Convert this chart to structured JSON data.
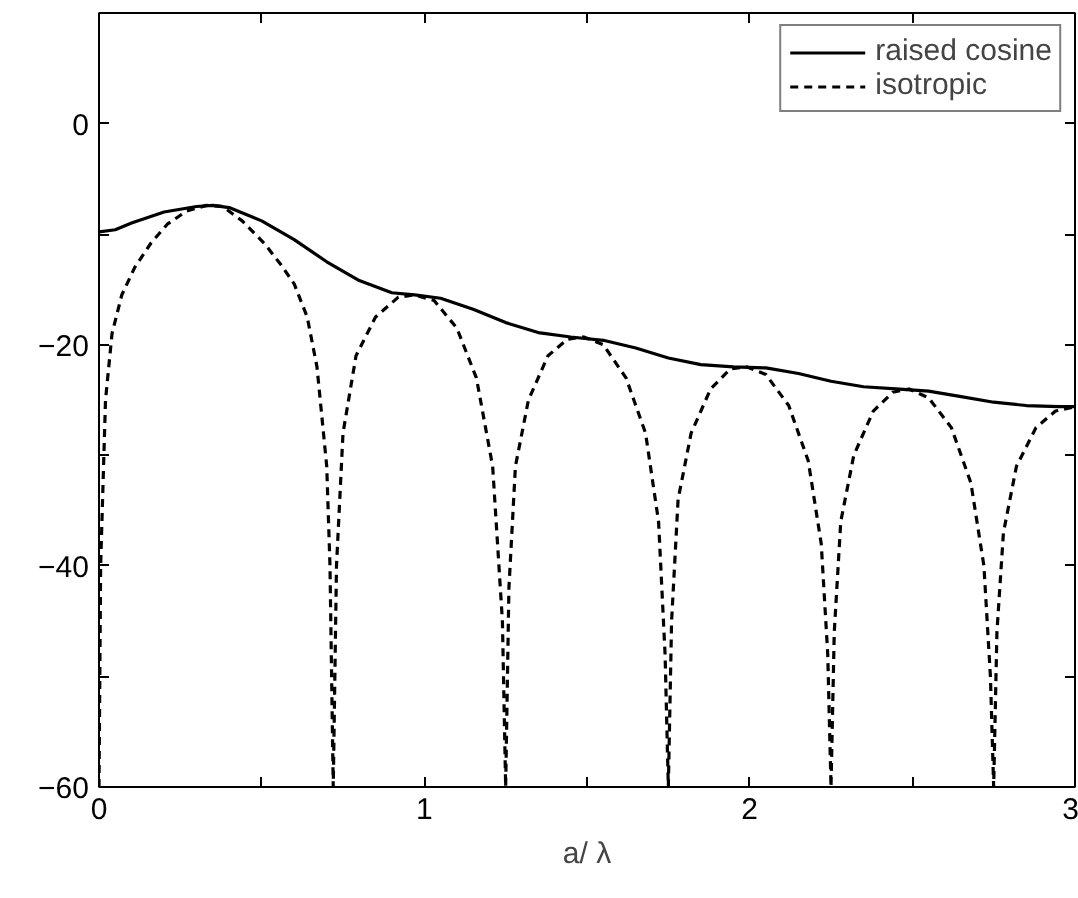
{
  "chart_data": {
    "type": "line",
    "xlabel": "a/ λ",
    "xlim": [
      0,
      3
    ],
    "ylim": [
      -60,
      10
    ],
    "xticks": [
      0,
      {
        "value": 0.5,
        "label": null
      },
      1,
      {
        "value": 1.5,
        "label": null
      },
      2,
      {
        "value": 2.5,
        "label": null
      },
      3
    ],
    "yticks": [
      -60,
      {
        "value": -50,
        "label": null
      },
      -40,
      {
        "value": -30,
        "label": null
      },
      -20,
      {
        "value": -10,
        "label": null
      },
      0,
      {
        "value": 10,
        "label": null
      }
    ],
    "grid": false,
    "legend": "top right",
    "marker": "none",
    "series": [
      {
        "name": "raised cosine",
        "color": "#000000",
        "line_style": "solid",
        "x": [
          0,
          0.05,
          0.1,
          0.2,
          0.3,
          0.35,
          0.4,
          0.5,
          0.6,
          0.7,
          0.8,
          0.9,
          0.97,
          1.05,
          1.15,
          1.25,
          1.35,
          1.45,
          1.55,
          1.65,
          1.75,
          1.85,
          1.95,
          2.05,
          2.15,
          2.25,
          2.35,
          2.45,
          2.55,
          2.65,
          2.75,
          2.85,
          2.95,
          3.0
        ],
        "values": [
          -9.8,
          -9.6,
          -9,
          -8,
          -7.5,
          -7.4,
          -7.6,
          -8.8,
          -10.5,
          -12.5,
          -14.2,
          -15.3,
          -15.5,
          -15.8,
          -16.8,
          -18.0,
          -18.9,
          -19.3,
          -19.6,
          -20.3,
          -21.2,
          -21.8,
          -22,
          -22.1,
          -22.6,
          -23.3,
          -23.8,
          -24,
          -24.2,
          -24.7,
          -25.2,
          -25.5,
          -25.6,
          -25.6
        ]
      },
      {
        "name": "isotropic",
        "color": "#000000",
        "line_style": "dashed",
        "x": [
          0,
          0.005,
          0.02,
          0.04,
          0.07,
          0.11,
          0.16,
          0.21,
          0.27,
          0.33,
          0.38,
          0.44,
          0.51,
          0.56,
          0.6,
          0.64,
          0.67,
          0.7,
          0.71,
          0.72,
          0.73,
          0.75,
          0.79,
          0.85,
          0.92,
          0.97,
          1.03,
          1.1,
          1.16,
          1.21,
          1.24,
          1.25,
          1.26,
          1.28,
          1.32,
          1.38,
          1.44,
          1.49,
          1.55,
          1.62,
          1.68,
          1.72,
          1.74,
          1.75,
          1.76,
          1.78,
          1.82,
          1.88,
          1.94,
          1.99,
          2.05,
          2.12,
          2.18,
          2.22,
          2.24,
          2.25,
          2.26,
          2.28,
          2.32,
          2.38,
          2.44,
          2.49,
          2.55,
          2.62,
          2.68,
          2.72,
          2.74,
          2.75,
          2.76,
          2.78,
          2.82,
          2.88,
          2.94,
          3.0
        ],
        "values": [
          -60,
          -40,
          -25,
          -19,
          -15.5,
          -13,
          -10.8,
          -9.1,
          -7.9,
          -7.4,
          -7.5,
          -8.8,
          -10.9,
          -12.8,
          -14.5,
          -17.5,
          -22,
          -31,
          -40,
          -60,
          -40,
          -28,
          -21,
          -17.5,
          -15.7,
          -15.5,
          -16,
          -18.5,
          -23,
          -31,
          -45,
          -60,
          -42,
          -31,
          -25,
          -21,
          -19.5,
          -19.3,
          -20,
          -23,
          -28,
          -36,
          -48,
          -60,
          -45,
          -34,
          -28,
          -24,
          -22.2,
          -22,
          -22.7,
          -25.5,
          -30.5,
          -38,
          -48,
          -60,
          -46,
          -36,
          -30,
          -26,
          -24.3,
          -24,
          -24.8,
          -27.5,
          -32.5,
          -40,
          -50,
          -60,
          -46,
          -37,
          -31,
          -27.5,
          -26,
          -25.6
        ]
      }
    ]
  }
}
